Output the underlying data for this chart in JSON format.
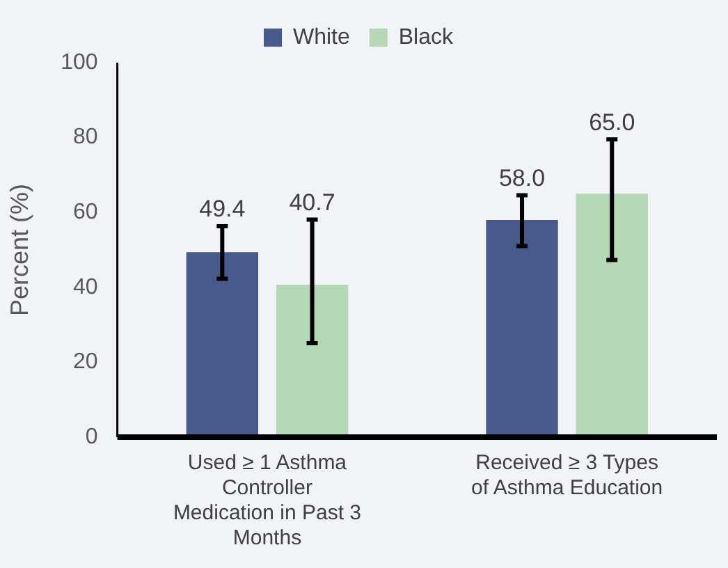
{
  "chart_data": {
    "type": "bar",
    "ylabel": "Percent (%)",
    "categories": [
      "Used ≥ 1 Asthma Controller Medication in Past 3 Months",
      "Received ≥ 3 Types of Asthma Education"
    ],
    "series": [
      {
        "name": "White",
        "color": "#475a89",
        "values": [
          49.4,
          58.0
        ],
        "value_labels": [
          "49.4",
          "58.0"
        ],
        "errors": [
          [
            42.3,
            56.3
          ],
          [
            51.0,
            64.6
          ]
        ]
      },
      {
        "name": "Black",
        "color": "#b7d8b7",
        "values": [
          40.7,
          65.0
        ],
        "value_labels": [
          "40.7",
          "65.0"
        ],
        "errors": [
          [
            25.1,
            58.1
          ],
          [
            47.3,
            79.5
          ]
        ]
      }
    ],
    "ylim": [
      0,
      100
    ],
    "yticks": [
      0,
      20,
      40,
      60,
      80,
      100
    ],
    "grid": false,
    "legend": "top"
  }
}
